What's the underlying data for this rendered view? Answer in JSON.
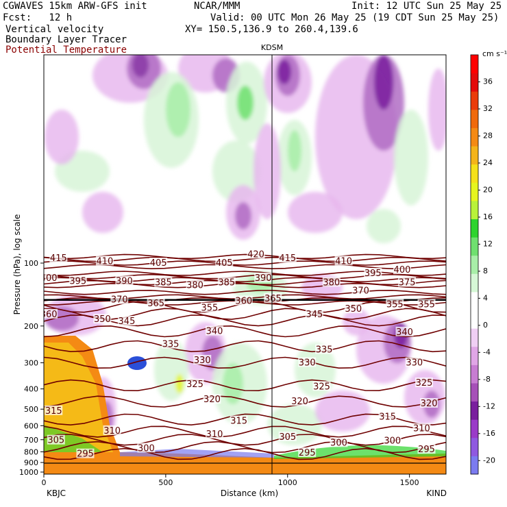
{
  "header": {
    "model": "CGWAVES 15km ARW-GFS init",
    "fcst": "Fcst:   12 h",
    "org": "NCAR/MMM",
    "init": "Init: 12 UTC Sun 25 May 25",
    "valid": "Valid: 00 UTC Mon 26 May 25 (19 CDT Sun 25 May 25)",
    "xy": "XY= 150.5,136.9 to 260.4,139.6",
    "field1": "Vertical velocity",
    "field2": "Boundary Layer Tracer",
    "field3": "Potential Temperature",
    "field3_color": "#8b0000",
    "station_mid": "KDSM"
  },
  "chart_data": {
    "type": "heatmap",
    "description_fields": [
      "Vertical velocity",
      "Boundary Layer Tracer",
      "Potential Temperature"
    ],
    "xlabel": "Distance (km)",
    "ylabel": "Pressure (hPa), log scale",
    "x_ticks": [
      0,
      500,
      1000,
      1500
    ],
    "xlim": [
      0,
      1650
    ],
    "x_endpoints": {
      "left": "KBJC",
      "right": "KIND"
    },
    "y_ticks": [
      100,
      200,
      300,
      400,
      500,
      600,
      700,
      800,
      900,
      1000
    ],
    "y_scale": "log",
    "colorbar": {
      "unit": "cm s⁻¹",
      "levels": [
        -20,
        -16,
        -12,
        -8,
        -4,
        0,
        4,
        8,
        12,
        16,
        20,
        24,
        28,
        32,
        36
      ],
      "colors": [
        "#7b7bf0",
        "#8f59e0",
        "#9a3bc8",
        "#7a1f9e",
        "#a650b8",
        "#c77dd2",
        "#e0a6e6",
        "#f0cff4",
        "#ffffff",
        "#ffffff",
        "#d6f7d6",
        "#a8eea8",
        "#6fe06f",
        "#2ed42e",
        "#b9f23a",
        "#e6f51e",
        "#f5e11a",
        "#f4b41a",
        "#f48a14",
        "#f06a0c",
        "#ea3b0a",
        "#e40a0a",
        "#ff0000"
      ]
    },
    "theta_contours": [
      295,
      300,
      305,
      310,
      315,
      320,
      325,
      330,
      335,
      340,
      345,
      350,
      355,
      360,
      365,
      370,
      375,
      380,
      385,
      390,
      395,
      400,
      405,
      410,
      415,
      420
    ],
    "theta_labels": [
      {
        "text": "415",
        "x": 60,
        "p": 95
      },
      {
        "text": "410",
        "x": 250,
        "p": 98
      },
      {
        "text": "405",
        "x": 470,
        "p": 100
      },
      {
        "text": "405",
        "x": 740,
        "p": 100
      },
      {
        "text": "420",
        "x": 870,
        "p": 91
      },
      {
        "text": "415",
        "x": 1000,
        "p": 95
      },
      {
        "text": "410",
        "x": 1230,
        "p": 98
      },
      {
        "text": "400",
        "x": 1470,
        "p": 108
      },
      {
        "text": "400",
        "x": 20,
        "p": 118
      },
      {
        "text": "395",
        "x": 140,
        "p": 122
      },
      {
        "text": "390",
        "x": 330,
        "p": 122
      },
      {
        "text": "385",
        "x": 490,
        "p": 124
      },
      {
        "text": "380",
        "x": 620,
        "p": 128
      },
      {
        "text": "385",
        "x": 750,
        "p": 124
      },
      {
        "text": "390",
        "x": 900,
        "p": 118
      },
      {
        "text": "380",
        "x": 1180,
        "p": 124
      },
      {
        "text": "395",
        "x": 1350,
        "p": 112
      },
      {
        "text": "375",
        "x": 1490,
        "p": 124
      },
      {
        "text": "370",
        "x": 310,
        "p": 150
      },
      {
        "text": "365",
        "x": 460,
        "p": 156
      },
      {
        "text": "360",
        "x": 820,
        "p": 152
      },
      {
        "text": "365",
        "x": 940,
        "p": 148
      },
      {
        "text": "370",
        "x": 1300,
        "p": 136
      },
      {
        "text": "355",
        "x": 680,
        "p": 164
      },
      {
        "text": "355",
        "x": 1440,
        "p": 158
      },
      {
        "text": "355",
        "x": 1570,
        "p": 158
      },
      {
        "text": "360",
        "x": 20,
        "p": 176
      },
      {
        "text": "350",
        "x": 240,
        "p": 186
      },
      {
        "text": "345",
        "x": 340,
        "p": 190
      },
      {
        "text": "345",
        "x": 1110,
        "p": 176
      },
      {
        "text": "350",
        "x": 1270,
        "p": 166
      },
      {
        "text": "340",
        "x": 700,
        "p": 212
      },
      {
        "text": "340",
        "x": 1480,
        "p": 214
      },
      {
        "text": "335",
        "x": 520,
        "p": 245
      },
      {
        "text": "335",
        "x": 1150,
        "p": 260
      },
      {
        "text": "330",
        "x": 650,
        "p": 292
      },
      {
        "text": "330",
        "x": 1080,
        "p": 300
      },
      {
        "text": "330",
        "x": 1520,
        "p": 300
      },
      {
        "text": "325",
        "x": 620,
        "p": 380
      },
      {
        "text": "325",
        "x": 1140,
        "p": 390
      },
      {
        "text": "325",
        "x": 1560,
        "p": 375
      },
      {
        "text": "320",
        "x": 690,
        "p": 450
      },
      {
        "text": "320",
        "x": 1050,
        "p": 460
      },
      {
        "text": "320",
        "x": 1580,
        "p": 470
      },
      {
        "text": "315",
        "x": 40,
        "p": 510
      },
      {
        "text": "315",
        "x": 800,
        "p": 570
      },
      {
        "text": "315",
        "x": 1410,
        "p": 545
      },
      {
        "text": "310",
        "x": 280,
        "p": 635
      },
      {
        "text": "310",
        "x": 700,
        "p": 660
      },
      {
        "text": "310",
        "x": 1550,
        "p": 620
      },
      {
        "text": "305",
        "x": 50,
        "p": 705
      },
      {
        "text": "305",
        "x": 1000,
        "p": 680
      },
      {
        "text": "300",
        "x": 420,
        "p": 770
      },
      {
        "text": "300",
        "x": 1210,
        "p": 725
      },
      {
        "text": "300",
        "x": 1430,
        "p": 710
      },
      {
        "text": "295",
        "x": 170,
        "p": 820
      },
      {
        "text": "295",
        "x": 1080,
        "p": 810
      },
      {
        "text": "295",
        "x": 1570,
        "p": 780
      }
    ]
  }
}
